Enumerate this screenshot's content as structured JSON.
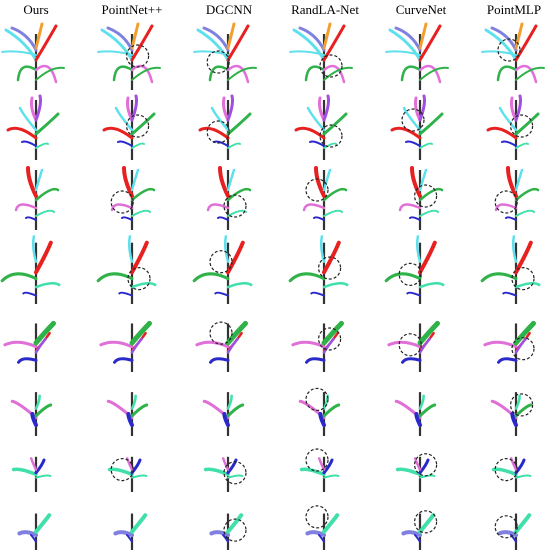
{
  "figure": {
    "columns": [
      {
        "label": "Ours"
      },
      {
        "label": "PointNet++"
      },
      {
        "label": "DGCNN"
      },
      {
        "label": "RandLA-Net"
      },
      {
        "label": "CurveNet"
      },
      {
        "label": "PointMLP"
      }
    ],
    "row_count": 8,
    "colors": {
      "stem": "#333333",
      "cyan": "#5fe0ec",
      "red": "#e82020",
      "green": "#2fb24a",
      "pink": "#e070d8",
      "purple": "#a050e0",
      "blue": "#2a2acc",
      "teal": "#40e0a8",
      "orange": "#f0a030",
      "lavender": "#8080e0",
      "gray": "#999999"
    },
    "error_circles": [
      {
        "row": 0,
        "col": 1
      },
      {
        "row": 0,
        "col": 2
      },
      {
        "row": 0,
        "col": 3
      },
      {
        "row": 0,
        "col": 5
      },
      {
        "row": 1,
        "col": 1
      },
      {
        "row": 1,
        "col": 2
      },
      {
        "row": 1,
        "col": 3
      },
      {
        "row": 1,
        "col": 4
      },
      {
        "row": 1,
        "col": 5
      },
      {
        "row": 2,
        "col": 1
      },
      {
        "row": 2,
        "col": 2
      },
      {
        "row": 2,
        "col": 3
      },
      {
        "row": 2,
        "col": 4
      },
      {
        "row": 2,
        "col": 5
      },
      {
        "row": 3,
        "col": 1
      },
      {
        "row": 3,
        "col": 2
      },
      {
        "row": 3,
        "col": 3
      },
      {
        "row": 3,
        "col": 4
      },
      {
        "row": 3,
        "col": 5
      },
      {
        "row": 4,
        "col": 2
      },
      {
        "row": 4,
        "col": 3
      },
      {
        "row": 4,
        "col": 4
      },
      {
        "row": 4,
        "col": 5
      },
      {
        "row": 5,
        "col": 3
      },
      {
        "row": 5,
        "col": 5
      },
      {
        "row": 6,
        "col": 1
      },
      {
        "row": 6,
        "col": 2
      },
      {
        "row": 6,
        "col": 3
      },
      {
        "row": 6,
        "col": 4
      },
      {
        "row": 6,
        "col": 5
      },
      {
        "row": 7,
        "col": 2
      },
      {
        "row": 7,
        "col": 3
      },
      {
        "row": 7,
        "col": 4
      },
      {
        "row": 7,
        "col": 5
      }
    ]
  }
}
